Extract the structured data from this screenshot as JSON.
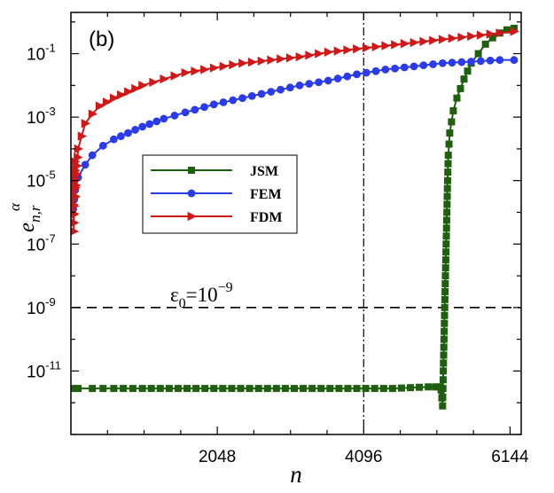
{
  "chart_data": {
    "type": "line",
    "panel_label": "(b)",
    "xlabel": "n",
    "ylabel": {
      "base": "e",
      "subscript": "n,r",
      "superscript": "α"
    },
    "y_scale": "log",
    "xlim": [
      0,
      6300
    ],
    "ylim_exp": [
      -13,
      0.3
    ],
    "x_ticks": [
      {
        "value": 2048,
        "label": "2048"
      },
      {
        "value": 4096,
        "label": "4096"
      },
      {
        "value": 6144,
        "label": "6144"
      }
    ],
    "y_ticks": [
      {
        "exp": -1,
        "base": "10",
        "power": "-1"
      },
      {
        "exp": -3,
        "base": "10",
        "power": "-3"
      },
      {
        "exp": -5,
        "base": "10",
        "power": "-5"
      },
      {
        "exp": -7,
        "base": "10",
        "power": "-7"
      },
      {
        "exp": -9,
        "base": "10",
        "power": "-9"
      },
      {
        "exp": -11,
        "base": "10",
        "power": "-11"
      }
    ],
    "threshold": {
      "exp": -9,
      "label_main": "ε",
      "label_sub": "0",
      "label_eq": "=10",
      "label_sup": "−9"
    },
    "vline_x": 4096,
    "colors": {
      "JSM": "#1f5f0f",
      "FEM": "#2b3be8",
      "FDM": "#d01818",
      "axis": "#000000"
    },
    "legend": {
      "position": "middle-left",
      "entries": [
        "JSM",
        "FEM",
        "FDM"
      ]
    },
    "series": [
      {
        "name": "JSM",
        "marker": "square",
        "x": [
          32,
          100,
          300,
          600,
          1000,
          1500,
          2000,
          2500,
          3000,
          3500,
          4000,
          4500,
          5000,
          5100,
          5150,
          5180,
          5200,
          5210,
          5220,
          5230,
          5240,
          5250,
          5260,
          5270,
          5280,
          5300,
          5350,
          5400,
          5500,
          5600,
          5700,
          5800,
          5900,
          6000,
          6100,
          6200
        ],
        "logy": [
          -11.55,
          -11.55,
          -11.55,
          -11.55,
          -11.55,
          -11.55,
          -11.55,
          -11.55,
          -11.55,
          -11.55,
          -11.55,
          -11.55,
          -11.5,
          -11.5,
          -11.5,
          -11.6,
          -12.1,
          -11.0,
          -10.0,
          -9.0,
          -8.0,
          -7.0,
          -6.0,
          -5.0,
          -4.2,
          -3.5,
          -2.8,
          -2.4,
          -1.8,
          -1.3,
          -1.0,
          -0.7,
          -0.5,
          -0.35,
          -0.25,
          -0.2
        ]
      },
      {
        "name": "FEM",
        "marker": "circle",
        "x": [
          16,
          32,
          60,
          100,
          200,
          300,
          450,
          600,
          800,
          1000,
          1300,
          1600,
          2000,
          2400,
          2800,
          3200,
          3600,
          4000,
          4400,
          4800,
          5200,
          5600,
          6000,
          6200
        ],
        "logy": [
          -5.6,
          -5.9,
          -5.3,
          -4.9,
          -4.5,
          -4.2,
          -3.9,
          -3.7,
          -3.5,
          -3.3,
          -3.05,
          -2.85,
          -2.6,
          -2.4,
          -2.2,
          -2.0,
          -1.85,
          -1.65,
          -1.5,
          -1.4,
          -1.3,
          -1.25,
          -1.2,
          -1.2
        ]
      },
      {
        "name": "FDM",
        "marker": "triangle",
        "x": [
          16,
          32,
          40,
          48,
          56,
          64,
          80,
          100,
          150,
          200,
          300,
          400,
          600,
          800,
          1000,
          1300,
          1600,
          2000,
          2400,
          2800,
          3200,
          3600,
          4000,
          4400,
          4800,
          5200,
          5600,
          6000,
          6200
        ],
        "logy": [
          -4.6,
          -5.2,
          -6.6,
          -5.0,
          -4.4,
          -5.5,
          -4.8,
          -4.0,
          -3.6,
          -3.2,
          -2.9,
          -2.65,
          -2.4,
          -2.2,
          -2.0,
          -1.8,
          -1.6,
          -1.45,
          -1.3,
          -1.2,
          -1.1,
          -0.95,
          -0.85,
          -0.75,
          -0.65,
          -0.55,
          -0.45,
          -0.35,
          -0.3
        ]
      }
    ]
  }
}
